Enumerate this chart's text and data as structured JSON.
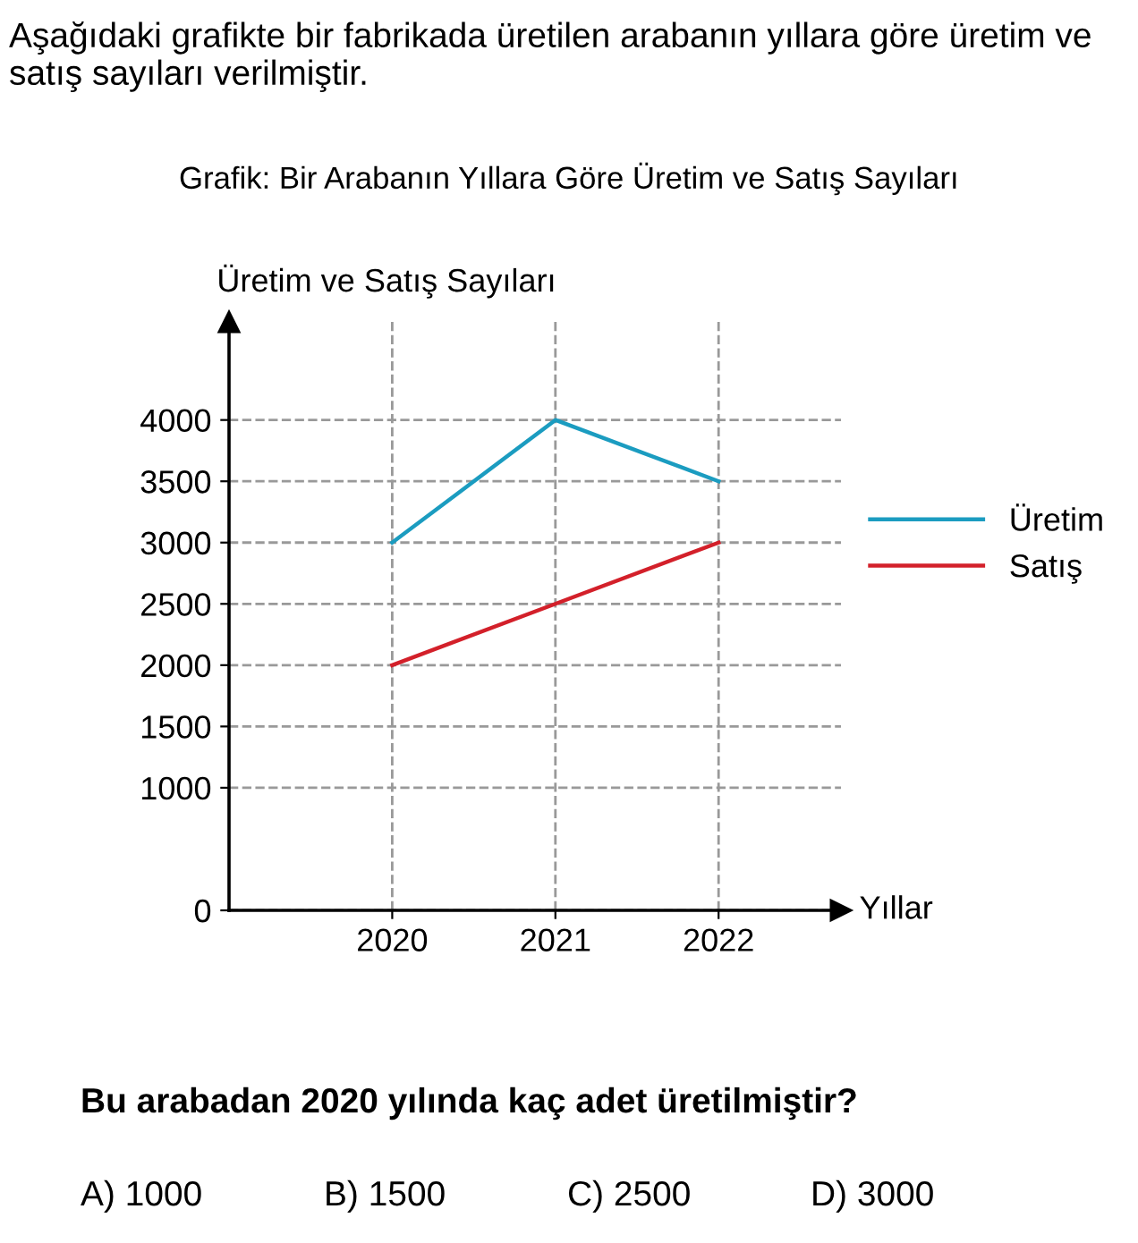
{
  "chart_data": {
    "type": "line",
    "title": "Grafik: Bir Arabanın Yıllara Göre Üretim ve Satış Sayıları",
    "xlabel": "Yıllar",
    "ylabel": "Üretim ve Satış Sayıları",
    "categories": [
      "2020",
      "2021",
      "2022"
    ],
    "series": [
      {
        "name": "Üretim",
        "color": "#1b9cc0",
        "values": [
          3000,
          4000,
          3500
        ]
      },
      {
        "name": "Satış",
        "color": "#d3202a",
        "values": [
          2000,
          2500,
          3000
        ]
      }
    ],
    "ylim": [
      0,
      4800
    ],
    "yticks": [
      0,
      1000,
      1500,
      2000,
      2500,
      3000,
      3500,
      4000
    ],
    "grid": true,
    "legend": "right",
    "marker": "none",
    "line_style": "solid",
    "annotations": [
      "Aşağıdaki grafikte bir fabrikada üretilen arabanın yıllara göre üretim ve satış sayıları verilmiştir.",
      "Bu arabadan 2020 yılında kaç adet üretilmiştir?",
      "A) 1000",
      "B) 1500",
      "C) 2500",
      "D) 3000"
    ]
  }
}
